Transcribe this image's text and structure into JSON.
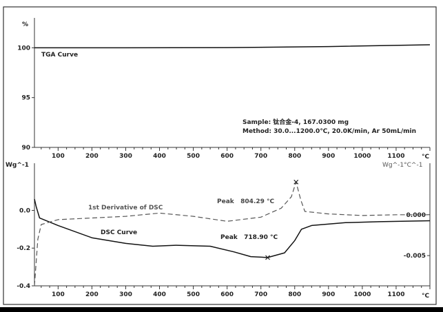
{
  "chart_data": [
    {
      "type": "line",
      "title": "",
      "xlabel": "°C",
      "ylabel": "%",
      "xlim": [
        30,
        1200
      ],
      "ylim": [
        90,
        103
      ],
      "x_ticks": [
        "100",
        "200",
        "300",
        "400",
        "500",
        "600",
        "700",
        "800",
        "900",
        "1000",
        "1100"
      ],
      "y_ticks": [
        "100",
        "95",
        "90"
      ],
      "series": [
        {
          "name": "TGA Curve",
          "x": [
            30,
            300,
            600,
            900,
            1200
          ],
          "y": [
            100,
            100,
            100.02,
            100.12,
            100.3
          ]
        }
      ],
      "annotations": {
        "sample": "Sample: 钛合金-4, 167.0300 mg",
        "method": "Method: 30.0...1200.0℃, 20.0K/min, Ar 50mL/min"
      }
    },
    {
      "type": "line",
      "title": "",
      "xlabel": "°C",
      "ylabel": "Wg^-1",
      "y2label": "Wg^-1°C^-1",
      "xlim": [
        30,
        1200
      ],
      "ylim": [
        -0.4,
        0.25
      ],
      "y2lim": [
        -0.0087,
        0.0063
      ],
      "x_ticks": [
        "100",
        "200",
        "300",
        "400",
        "500",
        "600",
        "700",
        "800",
        "900",
        "1000",
        "1100"
      ],
      "y_ticks": [
        "0.0",
        "-0.2",
        "-0.4"
      ],
      "y2_ticks": [
        "0.000",
        "-0.005"
      ],
      "series": [
        {
          "name": "DSC Curve",
          "axis": "left",
          "x": [
            30,
            35,
            45,
            100,
            200,
            300,
            380,
            450,
            550,
            620,
            670,
            720,
            770,
            800,
            820,
            850,
            950,
            1050,
            1200
          ],
          "y": [
            0.06,
            0.02,
            -0.04,
            -0.08,
            -0.145,
            -0.175,
            -0.19,
            -0.185,
            -0.19,
            -0.22,
            -0.245,
            -0.25,
            -0.225,
            -0.16,
            -0.1,
            -0.08,
            -0.065,
            -0.06,
            -0.055
          ]
        },
        {
          "name": "1st Derivative of DSC",
          "axis": "right",
          "style": "dashed",
          "x": [
            30,
            40,
            50,
            100,
            200,
            300,
            400,
            500,
            600,
            700,
            760,
            790,
            804,
            818,
            830,
            900,
            1000,
            1100,
            1200
          ],
          "y": [
            -0.0087,
            -0.003,
            -0.0012,
            -0.0006,
            -0.0004,
            -0.0002,
            0.0002,
            -0.0002,
            -0.0008,
            -0.0003,
            0.0008,
            0.0022,
            0.004,
            0.0018,
            0.0004,
            0.0001,
            -0.0001,
            0.0,
            0.0
          ]
        }
      ],
      "annotations": {
        "dsc_peak": "Peak   718.90 °C",
        "deriv_peak": "Peak   804.29 °C"
      }
    }
  ]
}
